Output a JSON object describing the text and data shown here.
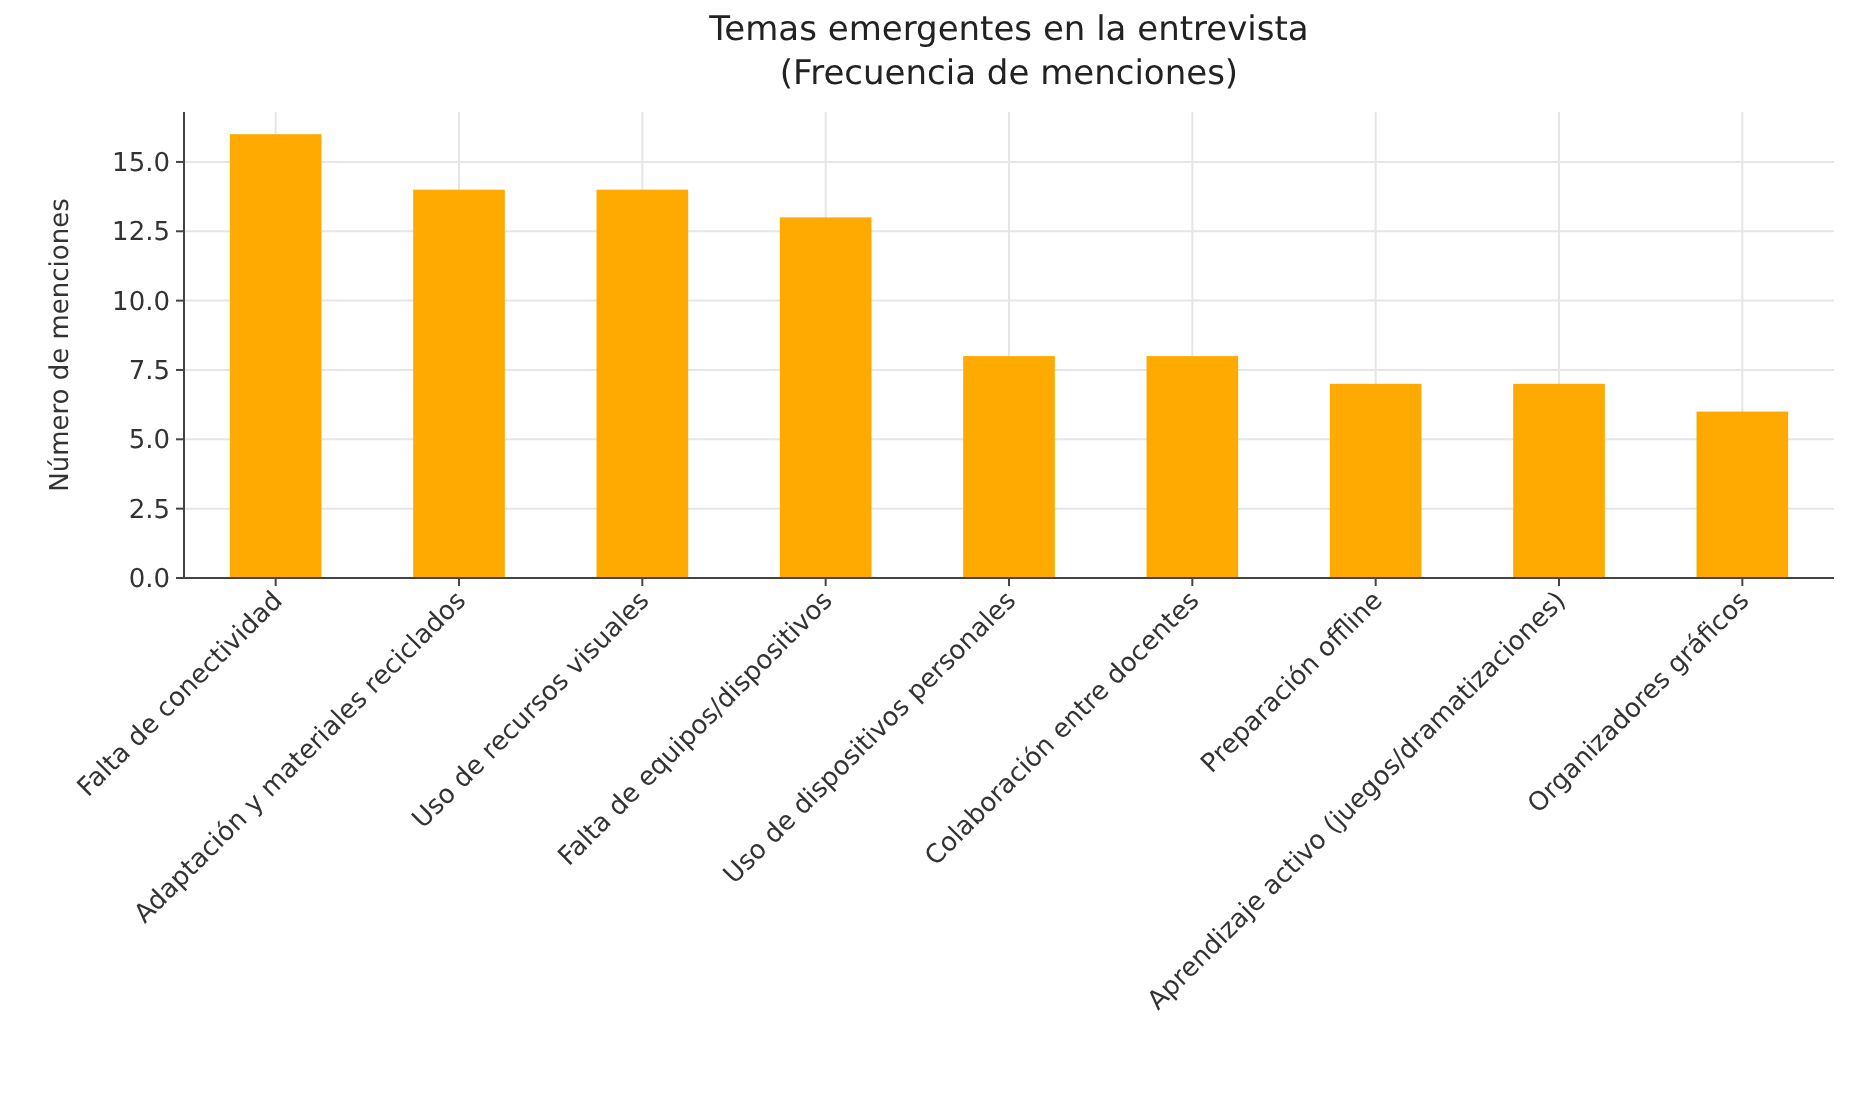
{
  "chart_data": {
    "type": "bar",
    "title": "Temas emergentes en la entrevista\n(Frecuencia de menciones)",
    "ylabel": "Número de menciones",
    "categories": [
      "Falta de conectividad",
      "Adaptación y materiales reciclados",
      "Uso de recursos visuales",
      "Falta de equipos/dispositivos",
      "Uso de dispositivos personales",
      "Colaboración entre docentes",
      "Preparación offline",
      "Aprendizaje activo (juegos/dramatizaciones)",
      "Organizadores gráficos"
    ],
    "values": [
      16,
      14,
      14,
      13,
      8,
      8,
      7,
      7,
      6
    ],
    "color": "#ffaa00",
    "ylim": [
      0,
      16.8
    ],
    "yticks": [
      {
        "value": 0,
        "label": "0.0"
      },
      {
        "value": 2.5,
        "label": "2.5"
      },
      {
        "value": 5,
        "label": "5.0"
      },
      {
        "value": 7.5,
        "label": "7.5"
      },
      {
        "value": 10,
        "label": "10.0"
      },
      {
        "value": 12.5,
        "label": "12.5"
      },
      {
        "value": 15,
        "label": "15.0"
      }
    ],
    "grid": true
  }
}
